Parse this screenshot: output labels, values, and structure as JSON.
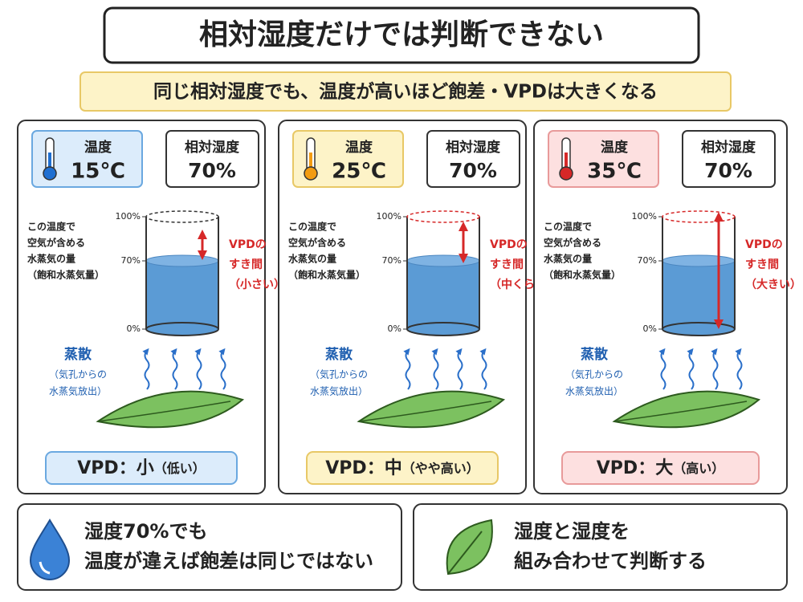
{
  "title": "相対湿度だけでは判断できない",
  "subtitle": "同じ相対湿度でも、温度が高いほど飽差・VPDは大きくなる",
  "panels": [
    {
      "temp_label": "温度",
      "temp": "15℃",
      "rh_label": "相対湿度",
      "rh": "70%",
      "cylinder_note": [
        "この温度で",
        "空気が含める",
        "水蒸気の量",
        "（飽和水蒸気量）"
      ],
      "ticks": [
        "100%",
        "70%",
        "0%"
      ],
      "gap_label": [
        "VPDの",
        "すき間",
        "（小さい）"
      ],
      "evap_label": "蒸散",
      "evap_note": [
        "（気孔からの",
        "水蒸気放出）"
      ],
      "result": "VPD：小",
      "result_note": "（低い）"
    },
    {
      "temp_label": "温度",
      "temp": "25℃",
      "rh_label": "相対湿度",
      "rh": "70%",
      "cylinder_note": [
        "この温度で",
        "空気が含める",
        "水蒸気の量",
        "（飽和水蒸気量）"
      ],
      "ticks": [
        "100%",
        "70%",
        "0%"
      ],
      "gap_label": [
        "VPDの",
        "すき間",
        "（中くらい）"
      ],
      "evap_label": "蒸散",
      "evap_note": [
        "（気孔からの",
        "水蒸気放出）"
      ],
      "result": "VPD：中",
      "result_note": "（やや高い）"
    },
    {
      "temp_label": "温度",
      "temp": "35℃",
      "rh_label": "相対湿度",
      "rh": "70%",
      "cylinder_note": [
        "この温度で",
        "空気が含める",
        "水蒸気の量",
        "（飽和水蒸気量）"
      ],
      "ticks": [
        "100%",
        "70%",
        "0%"
      ],
      "gap_label": [
        "VPDの",
        "すき間",
        "（大きい）"
      ],
      "evap_label": "蒸散",
      "evap_note": [
        "（気孔からの",
        "水蒸気放出）"
      ],
      "result": "VPD：大",
      "result_note": "（高い）"
    }
  ],
  "footer": [
    {
      "lines": [
        "湿度70%でも",
        "温度が違えば飽差は同じではない"
      ]
    },
    {
      "lines": [
        "湿度と湿度を",
        "組み合わせて判断する"
      ]
    }
  ]
}
